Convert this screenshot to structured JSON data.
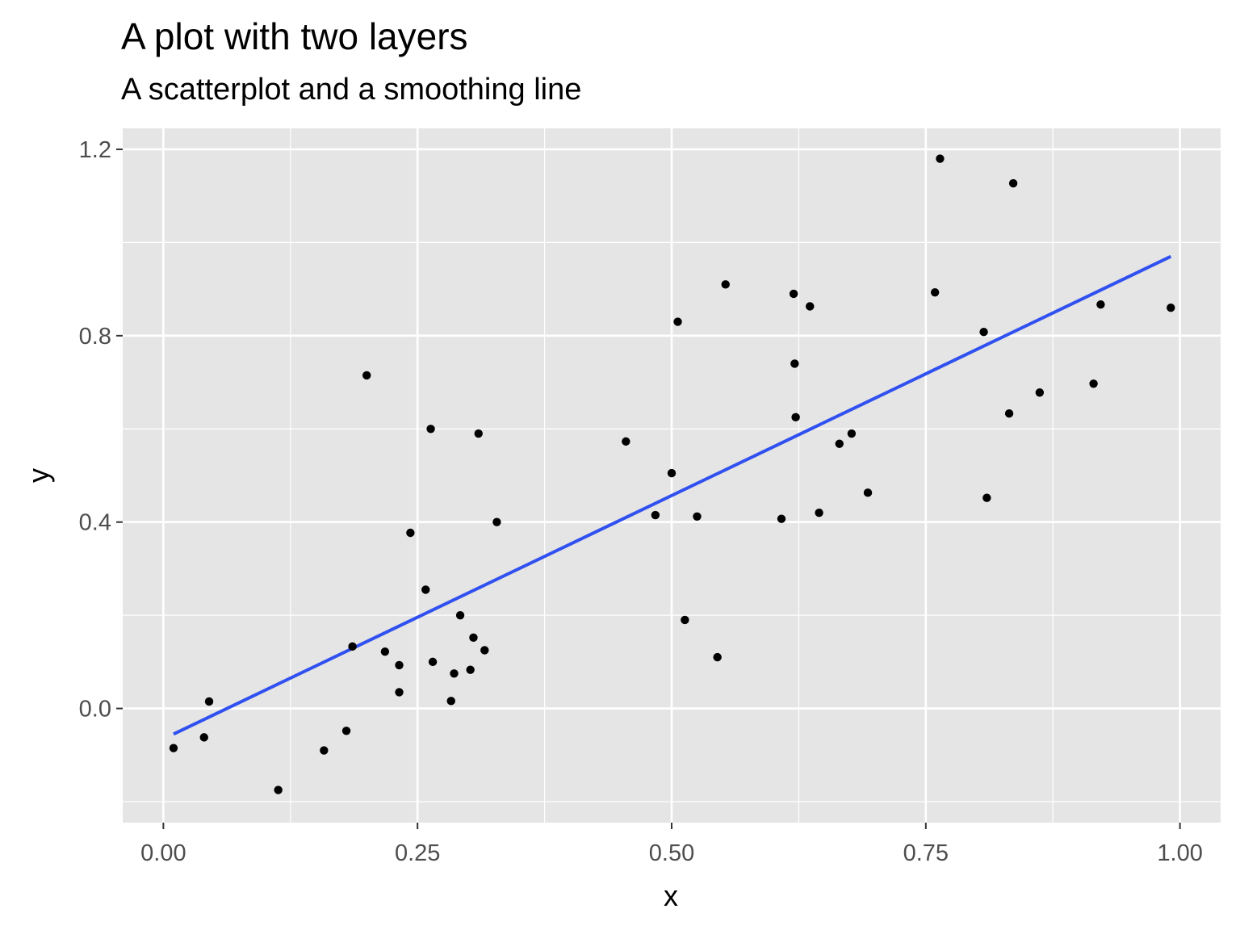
{
  "chart_data": {
    "type": "scatter",
    "title": "A plot with two layers",
    "subtitle": "A scatterplot and a smoothing line",
    "xlabel": "x",
    "ylabel": "y",
    "xlim": [
      -0.04,
      1.04
    ],
    "ylim": [
      -0.245,
      1.245
    ],
    "x_ticks": [
      0.0,
      0.25,
      0.5,
      0.75,
      1.0
    ],
    "x_tick_labels": [
      "0.00",
      "0.25",
      "0.50",
      "0.75",
      "1.00"
    ],
    "y_ticks": [
      0.0,
      0.4,
      0.8,
      1.2
    ],
    "y_tick_labels": [
      "0.0",
      "0.4",
      "0.8",
      "1.2"
    ],
    "grid": true,
    "legend": "none",
    "colors": {
      "panel": "#e5e5e5",
      "grid": "#ffffff",
      "points": "#000000",
      "smooth": "#3050f0"
    },
    "points": [
      [
        0.01,
        -0.085
      ],
      [
        0.04,
        -0.062
      ],
      [
        0.045,
        0.015
      ],
      [
        0.113,
        -0.175
      ],
      [
        0.158,
        -0.09
      ],
      [
        0.18,
        -0.048
      ],
      [
        0.186,
        0.133
      ],
      [
        0.2,
        0.715
      ],
      [
        0.218,
        0.122
      ],
      [
        0.232,
        0.093
      ],
      [
        0.232,
        0.035
      ],
      [
        0.243,
        0.377
      ],
      [
        0.258,
        0.255
      ],
      [
        0.263,
        0.6
      ],
      [
        0.265,
        0.1
      ],
      [
        0.283,
        0.016
      ],
      [
        0.286,
        0.075
      ],
      [
        0.292,
        0.2
      ],
      [
        0.302,
        0.083
      ],
      [
        0.305,
        0.152
      ],
      [
        0.31,
        0.59
      ],
      [
        0.316,
        0.125
      ],
      [
        0.328,
        0.4
      ],
      [
        0.455,
        0.573
      ],
      [
        0.484,
        0.415
      ],
      [
        0.5,
        0.505
      ],
      [
        0.506,
        0.83
      ],
      [
        0.513,
        0.19
      ],
      [
        0.525,
        0.412
      ],
      [
        0.545,
        0.11
      ],
      [
        0.553,
        0.91
      ],
      [
        0.608,
        0.407
      ],
      [
        0.62,
        0.89
      ],
      [
        0.621,
        0.74
      ],
      [
        0.622,
        0.625
      ],
      [
        0.636,
        0.863
      ],
      [
        0.645,
        0.42
      ],
      [
        0.665,
        0.568
      ],
      [
        0.677,
        0.59
      ],
      [
        0.693,
        0.463
      ],
      [
        0.759,
        0.893
      ],
      [
        0.764,
        1.18
      ],
      [
        0.807,
        0.808
      ],
      [
        0.81,
        0.452
      ],
      [
        0.832,
        0.633
      ],
      [
        0.836,
        1.127
      ],
      [
        0.862,
        0.678
      ],
      [
        0.915,
        0.697
      ],
      [
        0.922,
        0.867
      ],
      [
        0.991,
        0.86
      ]
    ],
    "smooth_line": {
      "x": [
        0.01,
        0.991
      ],
      "y": [
        -0.055,
        0.97
      ]
    }
  }
}
